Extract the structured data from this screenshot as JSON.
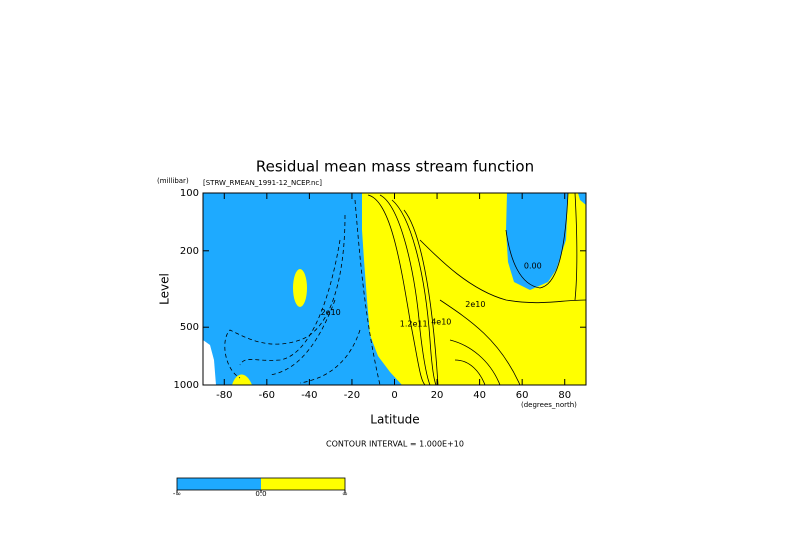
{
  "chart_data": {
    "type": "contour",
    "title": "Residual mean mass stream function",
    "subtitle": "[STRW_RMEAN_1991-12_NCEP.nc]",
    "y_unit": "(millibar)",
    "y_label": "Level",
    "x_label": "Latitude",
    "x_unit": "(degrees_north)",
    "note": "CONTOUR INTERVAL = 1.000E+10",
    "xlim": [
      -90,
      90
    ],
    "xticks": [
      -80,
      -60,
      -40,
      -20,
      0,
      20,
      40,
      60,
      80
    ],
    "ylim": [
      1000,
      100
    ],
    "yticks": [
      100,
      200,
      500,
      1000
    ],
    "log_y": true,
    "colors": [
      "#1eaaff",
      "#ffff00"
    ],
    "colorbar_labels": [
      "-∞",
      "0.0",
      "∞"
    ],
    "annotations": [
      {
        "text": "2e10",
        "x": -30,
        "y": 420
      },
      {
        "text": "2e10",
        "x": 38,
        "y": 380
      },
      {
        "text": "0.00",
        "x": 65,
        "y": 240
      },
      {
        "text": "4e10",
        "x": 22,
        "y": 470
      },
      {
        "text": "1.2e11",
        "x": 9,
        "y": 480
      }
    ]
  }
}
